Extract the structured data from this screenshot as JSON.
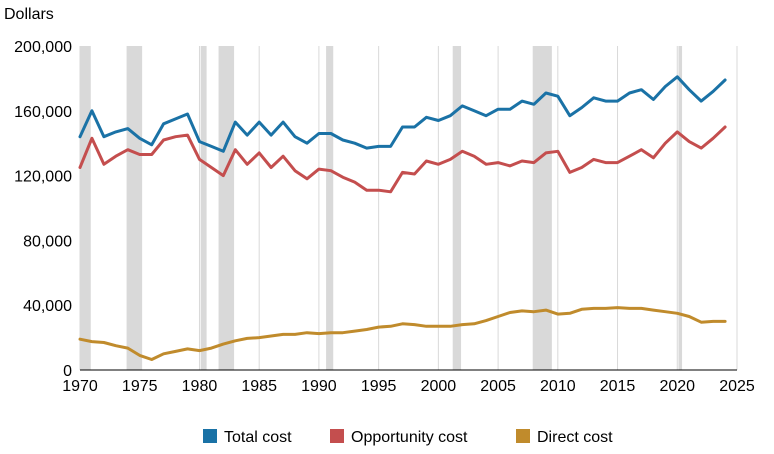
{
  "chart_data": {
    "type": "line",
    "title": "",
    "ylabel": "Dollars",
    "xlabel": "",
    "xlim": [
      1970,
      2025
    ],
    "ylim": [
      0,
      200000
    ],
    "x_ticks": [
      1970,
      1975,
      1980,
      1985,
      1990,
      1995,
      2000,
      2005,
      2010,
      2015,
      2020,
      2025
    ],
    "x_tick_labels": [
      "1970",
      "1975",
      "1980",
      "1985",
      "1990",
      "1995",
      "2000",
      "2005",
      "2010",
      "2015",
      "2020",
      "2025"
    ],
    "y_ticks": [
      0,
      40000,
      80000,
      120000,
      160000,
      200000
    ],
    "y_tick_labels": [
      "0",
      "40,000",
      "80,000",
      "120,000",
      "160,000",
      "200,000"
    ],
    "grid": "vertical lines at x ticks",
    "legend_position": "bottom",
    "recession_shading_color": "#d9d9d9",
    "recessions": [
      [
        1970.0,
        1970.9
      ],
      [
        1973.9,
        1975.2
      ],
      [
        1980.1,
        1980.6
      ],
      [
        1981.6,
        1982.9
      ],
      [
        1990.6,
        1991.2
      ],
      [
        2001.2,
        2001.9
      ],
      [
        2007.9,
        2009.5
      ],
      [
        2020.1,
        2020.4
      ]
    ],
    "x": [
      1970,
      1971,
      1972,
      1973,
      1974,
      1975,
      1976,
      1977,
      1978,
      1979,
      1980,
      1981,
      1982,
      1983,
      1984,
      1985,
      1986,
      1987,
      1988,
      1989,
      1990,
      1991,
      1992,
      1993,
      1994,
      1995,
      1996,
      1997,
      1998,
      1999,
      2000,
      2001,
      2002,
      2003,
      2004,
      2005,
      2006,
      2007,
      2008,
      2009,
      2010,
      2011,
      2012,
      2013,
      2014,
      2015,
      2016,
      2017,
      2018,
      2019,
      2020,
      2021,
      2022,
      2023,
      2024
    ],
    "series": [
      {
        "name": "Total cost",
        "color": "#1a72a6",
        "values": [
          144000,
          160000,
          144000,
          147000,
          149000,
          143000,
          139000,
          152000,
          155000,
          158000,
          141000,
          138000,
          135000,
          153000,
          145000,
          153000,
          145000,
          153000,
          144000,
          140000,
          146000,
          146000,
          142000,
          140000,
          137000,
          138000,
          138000,
          150000,
          150000,
          156000,
          154000,
          157000,
          163000,
          160000,
          157000,
          161000,
          161000,
          166000,
          164000,
          171000,
          169000,
          157000,
          162000,
          168000,
          166000,
          166000,
          171000,
          173000,
          167000,
          175000,
          181000,
          173000,
          166000,
          172000,
          179000
        ]
      },
      {
        "name": "Opportunity cost",
        "color": "#c44e4e",
        "values": [
          125000,
          143000,
          127000,
          132000,
          136000,
          133000,
          133000,
          142000,
          144000,
          145000,
          130000,
          125000,
          120000,
          136000,
          127000,
          134000,
          125000,
          132000,
          123000,
          118000,
          124000,
          123000,
          119000,
          116000,
          111000,
          111000,
          110000,
          122000,
          121000,
          129000,
          127000,
          130000,
          135000,
          132000,
          127000,
          128000,
          126000,
          129000,
          128000,
          134000,
          135000,
          122000,
          125000,
          130000,
          128000,
          128000,
          132000,
          136000,
          131000,
          140000,
          147000,
          141000,
          137000,
          143000,
          150000
        ]
      },
      {
        "name": "Direct cost",
        "color": "#c08b2c",
        "values": [
          19000,
          17500,
          17000,
          15000,
          13500,
          9000,
          6500,
          10000,
          11500,
          13000,
          12000,
          13500,
          16000,
          18000,
          19500,
          20000,
          21000,
          22000,
          22000,
          23000,
          22500,
          23000,
          23000,
          24000,
          25000,
          26500,
          27000,
          28500,
          28000,
          27000,
          27000,
          27000,
          28000,
          28500,
          30500,
          33000,
          35500,
          36500,
          36000,
          37000,
          34500,
          35000,
          37500,
          38000,
          38000,
          38500,
          38000,
          38000,
          37000,
          36000,
          35000,
          33000,
          29500,
          30000,
          30000
        ]
      }
    ]
  }
}
